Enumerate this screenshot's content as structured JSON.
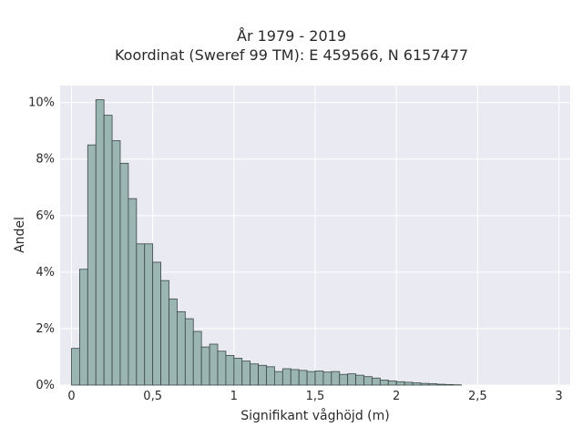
{
  "chart_data": {
    "type": "bar",
    "title": "År 1979 - 2019",
    "subtitle": "Koordinat (Sweref 99 TM): E 459566, N 6157477",
    "xlabel": "Signifikant våghöjd (m)",
    "ylabel": "Andel",
    "xlim": [
      -0.07,
      3.07
    ],
    "ylim": [
      0,
      10.6
    ],
    "grid": true,
    "bin_width": 0.05,
    "bin_start": 0.0,
    "x_ticks": [
      {
        "value": 0,
        "label": "0"
      },
      {
        "value": 0.5,
        "label": "0,5"
      },
      {
        "value": 1,
        "label": "1"
      },
      {
        "value": 1.5,
        "label": "1,5"
      },
      {
        "value": 2,
        "label": "2"
      },
      {
        "value": 2.5,
        "label": "2,5"
      },
      {
        "value": 3,
        "label": "3"
      }
    ],
    "y_ticks": [
      {
        "value": 0,
        "label": "0%"
      },
      {
        "value": 2,
        "label": "2%"
      },
      {
        "value": 4,
        "label": "4%"
      },
      {
        "value": 6,
        "label": "6%"
      },
      {
        "value": 8,
        "label": "8%"
      },
      {
        "value": 10,
        "label": "10%"
      }
    ],
    "values": [
      1.3,
      4.1,
      8.5,
      10.1,
      9.55,
      8.65,
      7.85,
      6.6,
      5.0,
      5.0,
      4.35,
      3.7,
      3.05,
      2.6,
      2.35,
      1.9,
      1.35,
      1.45,
      1.2,
      1.05,
      0.95,
      0.85,
      0.75,
      0.7,
      0.65,
      0.48,
      0.58,
      0.55,
      0.52,
      0.48,
      0.5,
      0.46,
      0.48,
      0.38,
      0.4,
      0.35,
      0.3,
      0.25,
      0.18,
      0.15,
      0.12,
      0.1,
      0.08,
      0.06,
      0.05,
      0.03,
      0.02,
      0.01
    ],
    "colors": {
      "bar_fill": "#9bb5b2",
      "bar_edge": "#3a4846",
      "plot_bg": "#eaeaf2",
      "grid": "#ffffff"
    }
  }
}
